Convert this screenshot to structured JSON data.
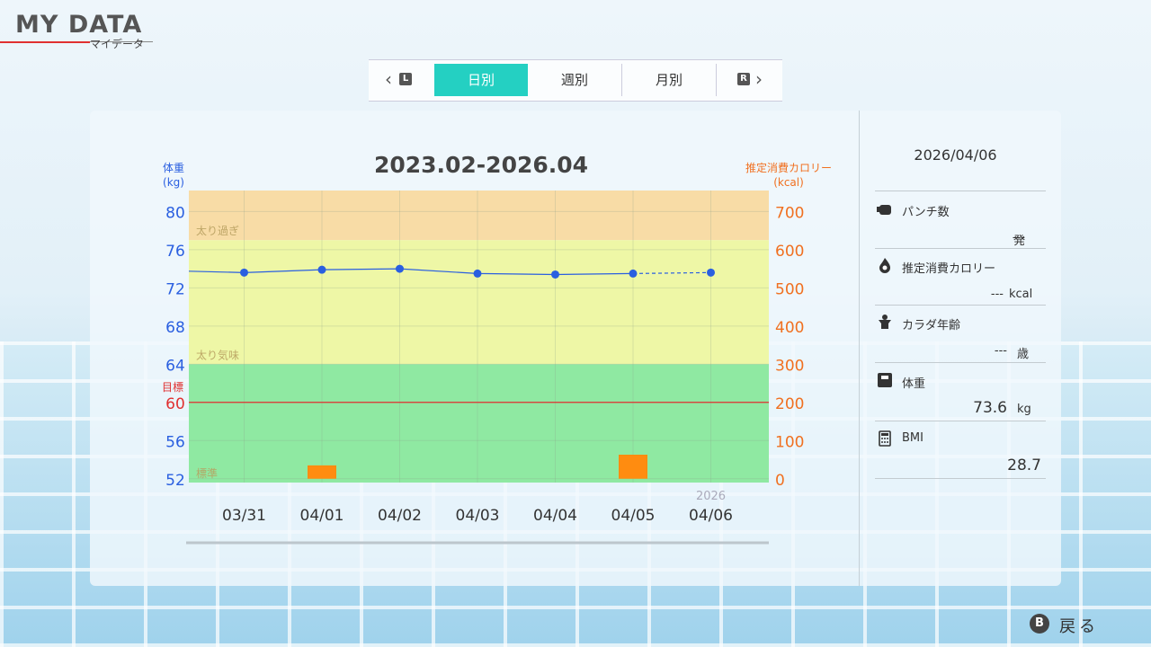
{
  "header": {
    "title": "MY DATA",
    "subtitle": "マイデータ"
  },
  "tabs": {
    "left_button": "L",
    "right_button": "R",
    "items": [
      "日別",
      "週別",
      "月別"
    ],
    "active": 0
  },
  "chart_data": {
    "type": "combo",
    "title": "2023.02-2026.04",
    "ylabel": [
      "体重",
      "(kg)"
    ],
    "y2label": [
      "推定消費カロリー",
      "(kcal)"
    ],
    "categories": [
      null,
      "03/31",
      "04/01",
      "04/02",
      "04/03",
      "04/04",
      "04/05",
      "04/06"
    ],
    "year_label": {
      "text": "2026",
      "index": 7
    },
    "ylim": [
      51.6,
      82.2
    ],
    "yticks": [
      52,
      56,
      60,
      64,
      68,
      72,
      76,
      80
    ],
    "y2lim": [
      -10,
      755
    ],
    "y2ticks": [
      0,
      100,
      200,
      300,
      400,
      500,
      600,
      700
    ],
    "grid": true,
    "goal": {
      "label": "目標",
      "value": 60,
      "color": "#e03030"
    },
    "bands": [
      {
        "label": "太り過ぎ",
        "from": 77,
        "color": "#f8dca6"
      },
      {
        "label": "太り気味",
        "from": 64,
        "color": "#eef7a6"
      },
      {
        "label": "標準",
        "from": 51.6,
        "color": "#8fe9a2"
      }
    ],
    "series": [
      {
        "name": "体重",
        "type": "line",
        "color": "#2a5fe0",
        "dashed_last": true,
        "values": [
          73.8,
          73.6,
          73.9,
          74.0,
          73.5,
          73.4,
          73.5,
          73.6
        ]
      },
      {
        "name": "推定消費カロリー",
        "type": "bar",
        "axis": "y2",
        "color": "#ff8c10",
        "values": [
          null,
          null,
          35,
          null,
          null,
          null,
          63,
          null
        ]
      }
    ]
  },
  "side_panel": {
    "date": "2026/04/06",
    "rows": [
      {
        "label": "パンチ数",
        "value": "---",
        "unit": "発"
      },
      {
        "label": "推定消費カロリー",
        "value": "---",
        "unit": "kcal"
      },
      {
        "label": "カラダ年齢",
        "value": "---",
        "unit": "歳"
      },
      {
        "label": "体重",
        "value": "73.6",
        "unit": "kg"
      },
      {
        "label": "BMI",
        "value": "28.7"
      }
    ]
  },
  "footer": {
    "button": "B",
    "label": "戻る"
  }
}
